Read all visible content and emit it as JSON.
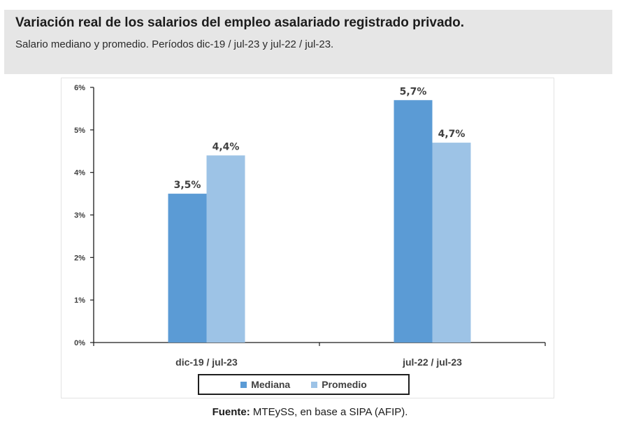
{
  "header": {
    "title": "Variación real de los salarios del empleo asalariado registrado privado.",
    "subtitle": "Salario mediano y promedio. Períodos dic-19 / jul-23 y jul-22 / jul-23."
  },
  "chart_data": {
    "type": "bar",
    "categories": [
      "dic-19 / jul-23",
      "jul-22 / jul-23"
    ],
    "series": [
      {
        "name": "Mediana",
        "values": [
          3.5,
          5.7
        ],
        "color": "#5b9bd5",
        "labels": [
          "3,5%",
          "5,7%"
        ]
      },
      {
        "name": "Promedio",
        "values": [
          4.4,
          4.7
        ],
        "color": "#9dc3e6",
        "labels": [
          "4,4%",
          "4,7%"
        ]
      }
    ],
    "ylim": [
      0,
      6
    ],
    "yticks": [
      {
        "value": 0,
        "label": "0%"
      },
      {
        "value": 1,
        "label": "1%"
      },
      {
        "value": 2,
        "label": "2%"
      },
      {
        "value": 3,
        "label": "3%"
      },
      {
        "value": 4,
        "label": "4%"
      },
      {
        "value": 5,
        "label": "5%"
      },
      {
        "value": 6,
        "label": "6%"
      }
    ],
    "grid": false,
    "legend_position": "bottom"
  },
  "source": {
    "label": "Fuente:",
    "text": " MTEySS, en base a SIPA (AFIP)."
  }
}
